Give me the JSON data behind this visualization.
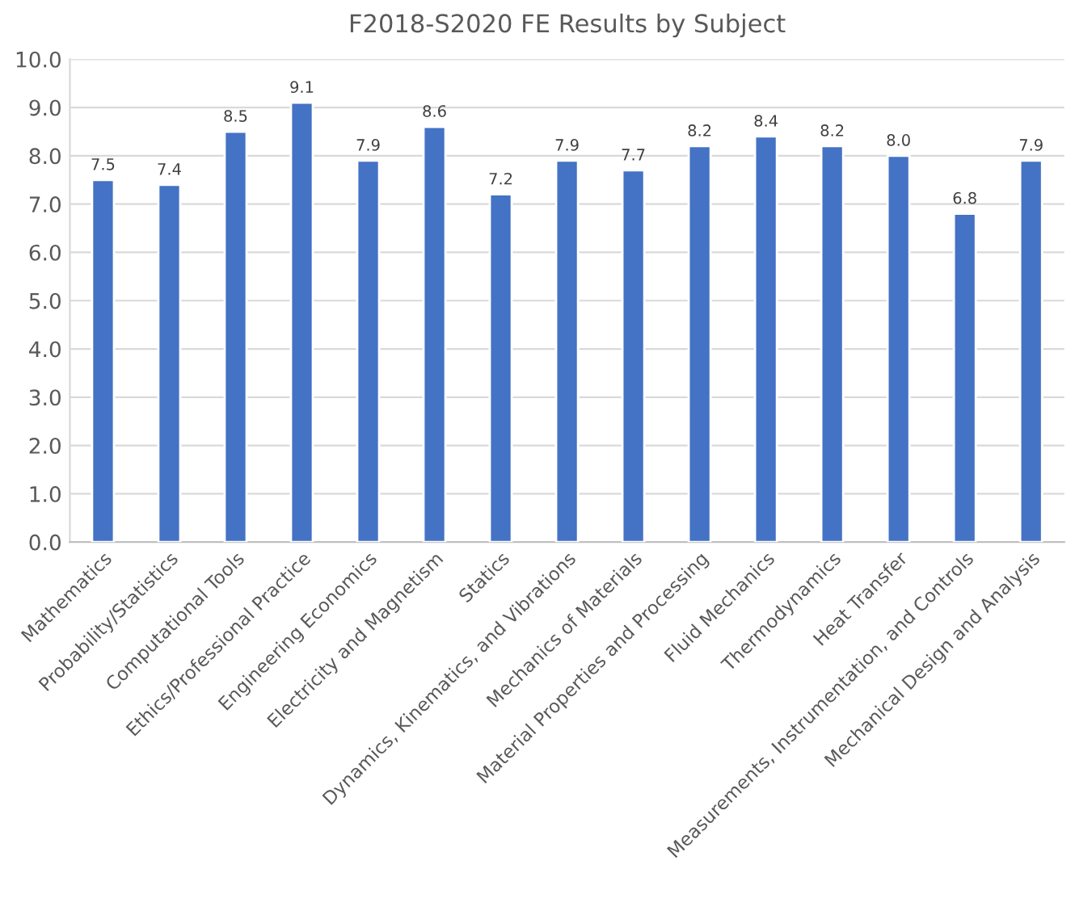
{
  "chart_data": {
    "type": "bar",
    "title": "F2018-S2020 FE Results by Subject",
    "categories": [
      "Mathematics",
      "Probability/Statistics",
      "Computational Tools",
      "Ethics/Professional Practice",
      "Engineering Economics",
      "Electricity and Magnetism",
      "Statics",
      "Dynamics, Kinematics, and Vibrations",
      "Mechanics of Materials",
      "Material Properties and Processing",
      "Fluid Mechanics",
      "Thermodynamics",
      "Heat Transfer",
      "Measurements, Instrumentation, and Controls",
      "Mechanical Design and Analysis"
    ],
    "values": [
      7.5,
      7.4,
      8.5,
      9.1,
      7.9,
      8.6,
      7.2,
      7.9,
      7.7,
      8.2,
      8.4,
      8.2,
      8.0,
      6.8,
      7.9
    ],
    "value_labels": [
      "7.5",
      "7.4",
      "8.5",
      "9.1",
      "7.9",
      "8.6",
      "7.2",
      "7.9",
      "7.7",
      "8.2",
      "8.4",
      "8.2",
      "8.0",
      "6.8",
      "7.9"
    ],
    "color": "#4472c4",
    "ylim": [
      0,
      10
    ],
    "yticks": [
      {
        "value": 0,
        "label": "0.0"
      },
      {
        "value": 1,
        "label": "1.0"
      },
      {
        "value": 2,
        "label": "2.0"
      },
      {
        "value": 3,
        "label": "3.0"
      },
      {
        "value": 4,
        "label": "4.0"
      },
      {
        "value": 5,
        "label": "5.0"
      },
      {
        "value": 6,
        "label": "6.0"
      },
      {
        "value": 7,
        "label": "7.0"
      },
      {
        "value": 8,
        "label": "8.0"
      },
      {
        "value": 9,
        "label": "9.0"
      },
      {
        "value": 10,
        "label": "10.0"
      }
    ],
    "grid": "y",
    "legend": false
  }
}
